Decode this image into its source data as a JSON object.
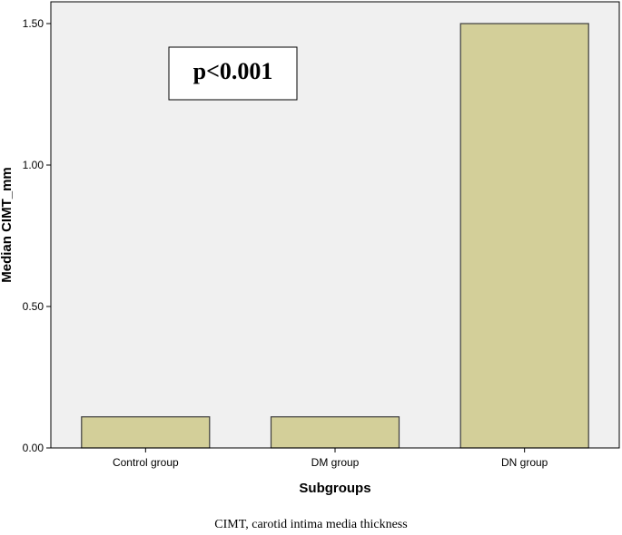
{
  "chart_data": {
    "type": "bar",
    "categories": [
      "Control group",
      "DM group",
      "DN group"
    ],
    "values": [
      0.11,
      0.11,
      1.5
    ],
    "xlabel": "Subgroups",
    "ylabel": "Median CIMT_mm",
    "ylim": [
      0,
      1.5
    ],
    "yticks": [
      "0.00",
      "0.50",
      "1.00",
      "1.50"
    ],
    "ytick_values": [
      0,
      0.5,
      1.0,
      1.5
    ],
    "annotation": "p<0.001",
    "grid": false,
    "legend": "none",
    "colors": {
      "bar_fill": "#d3cf99",
      "bar_stroke": "#3c3c3c",
      "plot_background": "#f0f0f0",
      "axis": "#000000"
    }
  },
  "caption": "CIMT, carotid intima media thickness"
}
